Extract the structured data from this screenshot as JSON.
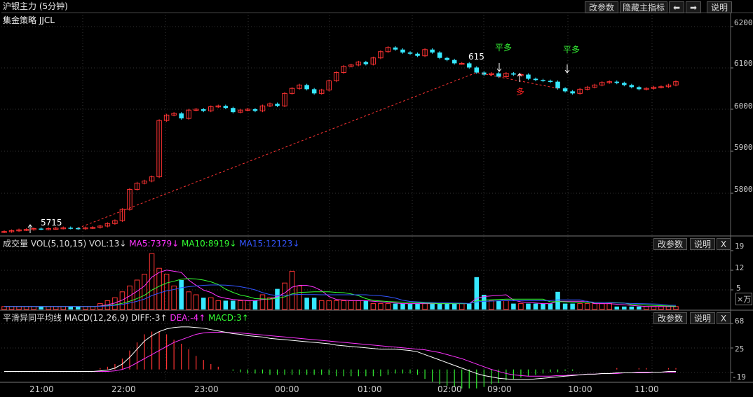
{
  "colors": {
    "up": "#ff3333",
    "down": "#36e8ff",
    "ma5": "#ff33ff",
    "ma10": "#33ff33",
    "ma15": "#3355ff",
    "diff": "#ffffff",
    "dea": "#ff33ff",
    "signal_green": "#33ee33",
    "signal_red": "#ff2222"
  },
  "header": {
    "title": "沪银主力 (5分钟)",
    "strategy": "集金策略 JJCL",
    "buttons": [
      "改参数",
      "隐藏主指标",
      "⬅",
      "➡",
      "说明"
    ]
  },
  "price_panel": {
    "yticks": [
      "6200",
      "6100",
      "6000",
      "5900",
      "5800"
    ],
    "annotations": {
      "low_label": "5715",
      "high_label": "615",
      "ping_duo_1": "平多",
      "ping_duo_2": "平多",
      "duo": "多"
    }
  },
  "volume_panel": {
    "title": "成交量",
    "name": "VOL(5,10,15)",
    "vol": "VOL:13↓",
    "ma5": "MA5:7379↓",
    "ma10": "MA10:8919↓",
    "ma15": "MA15:12123↓",
    "buttons": [
      "改参数",
      "说明",
      "X"
    ],
    "yticks": [
      "19",
      "12",
      "5"
    ],
    "unit": "×万"
  },
  "macd_panel": {
    "title": "平滑异同平均线",
    "name": "MACD(12,26,9)",
    "diff": "DIFF:-3↑",
    "dea": "DEA:-4↑",
    "macd": "MACD:3↑",
    "buttons": [
      "改参数",
      "说明",
      "X"
    ],
    "yticks": [
      "68",
      "25",
      "-19"
    ]
  },
  "time_axis": [
    "21:00",
    "22:00",
    "23:00",
    "00:00",
    "01:00",
    "02:00",
    "09:00",
    "10:00",
    "11:00"
  ],
  "chart_data": {
    "type": "candlestick",
    "title": "沪银主力 (5分钟)",
    "ylim": [
      5710,
      6210
    ],
    "session_breaks": [
      "02:30",
      "09:00"
    ],
    "price_series": [
      5719,
      5721,
      5723,
      5724,
      5726,
      5725,
      5726,
      5727,
      5728,
      5727,
      5726,
      5728,
      5729,
      5732,
      5738,
      5745,
      5772,
      5820,
      5835,
      5840,
      5850,
      5985,
      5998,
      6002,
      5990,
      6010,
      6012,
      6008,
      6018,
      6020,
      6015,
      6005,
      6010,
      6012,
      6008,
      6020,
      6025,
      6020,
      6050,
      6062,
      6070,
      6060,
      6050,
      6058,
      6080,
      6100,
      6115,
      6118,
      6125,
      6120,
      6135,
      6150,
      6160,
      6155,
      6148,
      6145,
      6140,
      6155,
      6148,
      6135,
      6130,
      6122,
      6122,
      6112,
      6100,
      6095,
      6098,
      6090,
      6098,
      6095,
      6095,
      6085,
      6082,
      6080,
      6078,
      6062,
      6055,
      6050,
      6060,
      6065,
      6070,
      6076,
      6078,
      6075,
      6070,
      6065,
      6060,
      6062,
      6065,
      6066,
      6070,
      6078
    ],
    "volume_series": [
      "1",
      "1",
      "1",
      "1",
      "1",
      "1",
      "1",
      "1",
      "1",
      "1",
      "1",
      "1",
      "1",
      "2",
      "3",
      "4",
      "6",
      "8",
      "10",
      "12",
      "19",
      "14",
      "12",
      "8",
      "10",
      "6",
      "5",
      "4",
      "4",
      "3",
      "3",
      "3",
      "3",
      "3",
      "3",
      "5",
      "4",
      "7",
      "9",
      "13",
      "8",
      "4",
      "4",
      "3",
      "3",
      "3",
      "3",
      "3",
      "3",
      "3",
      "2",
      "2",
      "2",
      "2",
      "2",
      "2",
      "2",
      "2",
      "2",
      "2",
      "2",
      "2",
      "2",
      "2",
      "11",
      "5",
      "3",
      "3",
      "3",
      "2",
      "2",
      "2",
      "2",
      "2",
      "2",
      "6",
      "2",
      "2",
      "2",
      "2",
      "2",
      "2",
      "2",
      "1",
      "1",
      "1",
      "1",
      "1",
      "1",
      "1",
      "1",
      "1"
    ],
    "macd_series": {
      "dif": [
        -3,
        -3,
        -3,
        -3,
        -3,
        -3,
        -3,
        -3,
        -3,
        -3,
        -3,
        -3,
        -3,
        -2,
        -1,
        2,
        8,
        18,
        30,
        42,
        50,
        56,
        60,
        62,
        63,
        63,
        62,
        61,
        59,
        57,
        55,
        53,
        52,
        50,
        49,
        48,
        46,
        45,
        44,
        43,
        42,
        41,
        40,
        39,
        38,
        36,
        35,
        34,
        33,
        32,
        31,
        30,
        30,
        30,
        29,
        28,
        26,
        22,
        18,
        14,
        10,
        6,
        2,
        -2,
        -6,
        -9,
        -11,
        -13,
        -14,
        -15,
        -15,
        -15,
        -14,
        -13,
        -12,
        -11,
        -10,
        -9,
        -8,
        -7,
        -7,
        -6,
        -6,
        -5,
        -5,
        -5,
        -4,
        -4,
        -4,
        -4,
        -3,
        -3
      ],
      "dea": [
        -3,
        -3,
        -3,
        -3,
        -3,
        -3,
        -3,
        -3,
        -3,
        -3,
        -3,
        -3,
        -3,
        -3,
        -3,
        -2,
        0,
        4,
        10,
        16,
        22,
        28,
        34,
        40,
        44,
        48,
        52,
        54,
        55,
        55,
        55,
        54,
        54,
        53,
        52,
        51,
        50,
        49,
        48,
        47,
        46,
        45,
        44,
        43,
        42,
        41,
        40,
        39,
        38,
        37,
        36,
        35,
        34,
        33,
        32,
        31,
        30,
        29,
        27,
        25,
        22,
        19,
        16,
        12,
        8,
        4,
        0,
        -3,
        -6,
        -8,
        -9,
        -10,
        -10,
        -10,
        -10,
        -9,
        -9,
        -8,
        -8,
        -7,
        -7,
        -6,
        -6,
        -6,
        -5,
        -5,
        -5,
        -5,
        -4,
        -4,
        -4,
        -4
      ]
    }
  }
}
